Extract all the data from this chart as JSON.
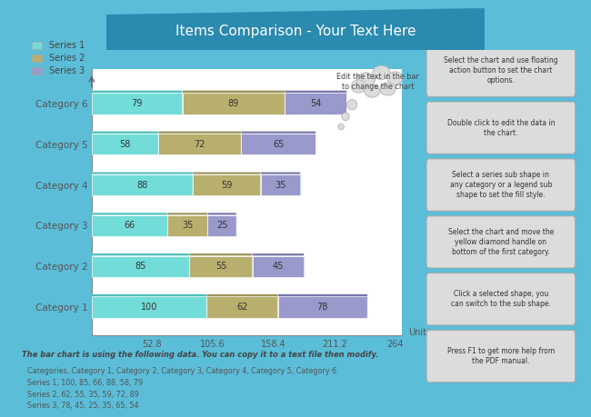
{
  "title": "Items Comparison - Your Text Here",
  "categories": [
    "Category 1",
    "Category 2",
    "Category 3",
    "Category 4",
    "Category 5",
    "Category 6"
  ],
  "series1": [
    100,
    85,
    66,
    88,
    58,
    79
  ],
  "series2": [
    62,
    55,
    35,
    59,
    72,
    89
  ],
  "series3": [
    78,
    45,
    25,
    35,
    65,
    54
  ],
  "series1_color": "#72DDD8",
  "series1_dark": "#4DBFBA",
  "series2_color": "#B8AF6E",
  "series2_dark": "#9A9258",
  "series3_color": "#9999CC",
  "series3_dark": "#7777AA",
  "series1_label": "Series 1",
  "series2_label": "Series 2",
  "series3_label": "Series 3",
  "xlabel": "Unit",
  "xticks": [
    52.8,
    105.6,
    158.4,
    211.2,
    264
  ],
  "xlim": [
    0,
    270
  ],
  "bar_height": 0.52,
  "background_color": "#f5f5f5",
  "white_area_color": "#ffffff",
  "outer_bg_color": "#5BBDD8",
  "title_bg_top": "#2E7FA0",
  "title_bg_bottom": "#5BBDD8",
  "footer_text_bold": "The bar chart is using the following data. You can copy it to a text file then modify.",
  "footer_lines": [
    "Categories, Category 1, Category 2, Category 3, Category 4, Category 5, Category 6",
    "Series 1, 100, 85, 66, 88, 58, 79",
    "Series 2, 62, 55, 35, 59, 72, 89",
    "Series 3, 78, 45, 25, 35, 65, 54"
  ],
  "right_panel_texts": [
    "Select the chart and use floating\naction button to set the chart\noptions.",
    "Double click to edit the data in\nthe chart.",
    "Select a series sub shape in\nany category or a legend sub\nshape to set the fill style.",
    "Select the chart and move the\nyellow diamond handle on\nbottom of the first category.",
    "Click a selected shape, you\ncan switch to the sub shape.",
    "Press F1 to get more help from\nthe PDF manual."
  ]
}
